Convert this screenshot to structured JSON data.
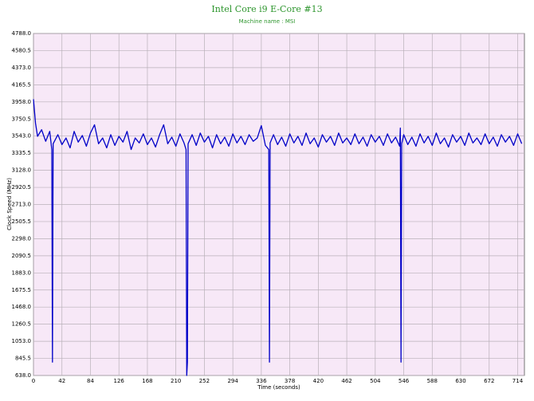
{
  "chart_data": {
    "type": "line",
    "title": "Intel Core i9 E-Core #13",
    "subtitle": "Machine name : MSI",
    "x_label": "Time (seconds)",
    "y_label": "Clock Speed (MHz)",
    "xlim": [
      0,
      724
    ],
    "xticks": [
      0,
      42,
      84,
      126,
      168,
      210,
      252,
      294,
      336,
      378,
      420,
      462,
      504,
      546,
      588,
      630,
      672,
      714
    ],
    "ylim": [
      638,
      4788
    ],
    "yticks": [
      {
        "value": 638,
        "label": "638.0"
      },
      845.5,
      {
        "value": 1053,
        "label": "1053.0"
      },
      1260.5,
      {
        "value": 1468,
        "label": "1468.0"
      },
      1675.5,
      {
        "value": 1883,
        "label": "1883.0"
      },
      2090.5,
      {
        "value": 2298,
        "label": "2298.0"
      },
      2505.5,
      {
        "value": 2713,
        "label": "2713.0"
      },
      2920.5,
      {
        "value": 3128,
        "label": "3128.0"
      },
      3335.5,
      {
        "value": 3543,
        "label": "3543.0"
      },
      3750.5,
      {
        "value": 3958,
        "label": "3958.0"
      },
      4165.5,
      {
        "value": 4373,
        "label": "4373.0"
      },
      4580.5,
      {
        "value": 4788,
        "label": "4788.0"
      }
    ],
    "grid": true,
    "x": [
      0,
      3,
      6,
      12,
      18,
      24,
      27,
      28,
      29,
      36,
      42,
      48,
      54,
      60,
      66,
      72,
      78,
      84,
      90,
      96,
      102,
      108,
      114,
      120,
      126,
      132,
      138,
      144,
      150,
      156,
      162,
      168,
      174,
      180,
      186,
      192,
      198,
      204,
      210,
      216,
      222,
      225,
      226,
      227,
      228,
      234,
      240,
      246,
      252,
      258,
      264,
      270,
      276,
      282,
      288,
      294,
      300,
      306,
      312,
      318,
      324,
      330,
      336,
      342,
      347,
      348,
      349,
      354,
      360,
      366,
      372,
      378,
      384,
      390,
      396,
      402,
      408,
      414,
      420,
      426,
      432,
      438,
      444,
      450,
      456,
      462,
      468,
      474,
      480,
      486,
      492,
      498,
      504,
      510,
      516,
      522,
      528,
      534,
      540,
      541,
      542,
      543,
      546,
      552,
      558,
      564,
      570,
      576,
      582,
      588,
      594,
      600,
      606,
      612,
      618,
      624,
      630,
      636,
      642,
      648,
      654,
      660,
      666,
      672,
      678,
      684,
      690,
      696,
      702,
      708,
      714,
      720
    ],
    "series": [
      {
        "name": "Clock Speed",
        "color": "#0000c8",
        "values": [
          3990,
          3700,
          3540,
          3620,
          3480,
          3600,
          3380,
          800,
          3450,
          3560,
          3440,
          3520,
          3400,
          3600,
          3470,
          3550,
          3420,
          3580,
          3680,
          3450,
          3520,
          3400,
          3560,
          3430,
          3540,
          3470,
          3600,
          3380,
          3520,
          3460,
          3570,
          3440,
          3520,
          3410,
          3560,
          3680,
          3450,
          3530,
          3420,
          3570,
          3460,
          3380,
          638,
          800,
          3450,
          3560,
          3430,
          3580,
          3470,
          3540,
          3400,
          3560,
          3450,
          3530,
          3420,
          3570,
          3460,
          3540,
          3440,
          3560,
          3480,
          3520,
          3670,
          3430,
          3380,
          800,
          3460,
          3560,
          3440,
          3530,
          3420,
          3570,
          3460,
          3540,
          3430,
          3580,
          3450,
          3520,
          3410,
          3560,
          3470,
          3540,
          3430,
          3580,
          3460,
          3520,
          3440,
          3570,
          3450,
          3530,
          3420,
          3560,
          3470,
          3540,
          3430,
          3570,
          3460,
          3530,
          3420,
          3640,
          800,
          3450,
          3560,
          3440,
          3530,
          3420,
          3570,
          3460,
          3540,
          3430,
          3580,
          3450,
          3520,
          3410,
          3560,
          3470,
          3540,
          3430,
          3580,
          3460,
          3520,
          3440,
          3570,
          3450,
          3530,
          3420,
          3560,
          3470,
          3540,
          3430,
          3570,
          3450
        ]
      }
    ]
  }
}
